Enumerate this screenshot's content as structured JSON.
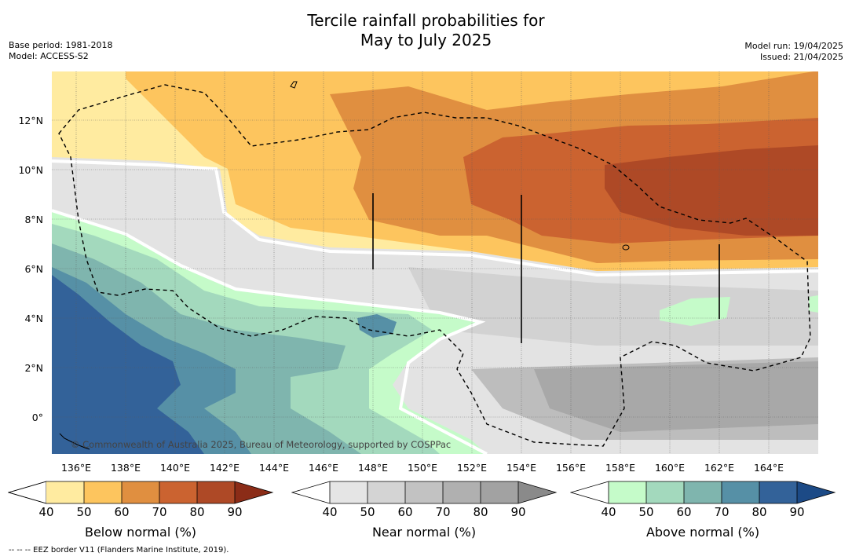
{
  "title_line1": "Tercile rainfall probabilities for",
  "title_line2": "May to July 2025",
  "base_period": "Base period: 1981-2018",
  "model": "Model: ACCESS-S2",
  "model_run": "Model run: 19/04/2025",
  "issued": "Issued: 21/04/2025",
  "copyright": "© Commonwealth of Australia 2025, Bureau of Meteorology, supported by COSPPac",
  "footnote": "-- -- -- EEZ border V11 (Flanders Marine Institute, 2019).",
  "x_ticks": [
    "136°E",
    "138°E",
    "140°E",
    "142°E",
    "144°E",
    "146°E",
    "148°E",
    "150°E",
    "152°E",
    "154°E",
    "156°E",
    "158°E",
    "160°E",
    "162°E",
    "164°E"
  ],
  "y_ticks": [
    "12°N",
    "10°N",
    "8°N",
    "6°N",
    "4°N",
    "2°N",
    "0°"
  ],
  "colorbars": [
    {
      "label": "Below normal (%)",
      "ticks": [
        "40",
        "50",
        "60",
        "70",
        "80",
        "90"
      ],
      "colors": [
        "#ffeba0",
        "#fdc55e",
        "#e08f40",
        "#cb6330",
        "#ae4926",
        "#8b2c17"
      ]
    },
    {
      "label": "Near normal (%)",
      "ticks": [
        "40",
        "50",
        "60",
        "70",
        "80",
        "90"
      ],
      "colors": [
        "#e5e5e5",
        "#d4d4d4",
        "#c2c2c2",
        "#b0b0b0",
        "#a2a2a2",
        "#8a8a8a"
      ]
    },
    {
      "label": "Above normal (%)",
      "ticks": [
        "40",
        "50",
        "60",
        "70",
        "80",
        "90"
      ],
      "colors": [
        "#c5fbc9",
        "#a3d9bd",
        "#7fb5ae",
        "#5690a6",
        "#336299",
        "#1c4a86"
      ]
    }
  ]
}
